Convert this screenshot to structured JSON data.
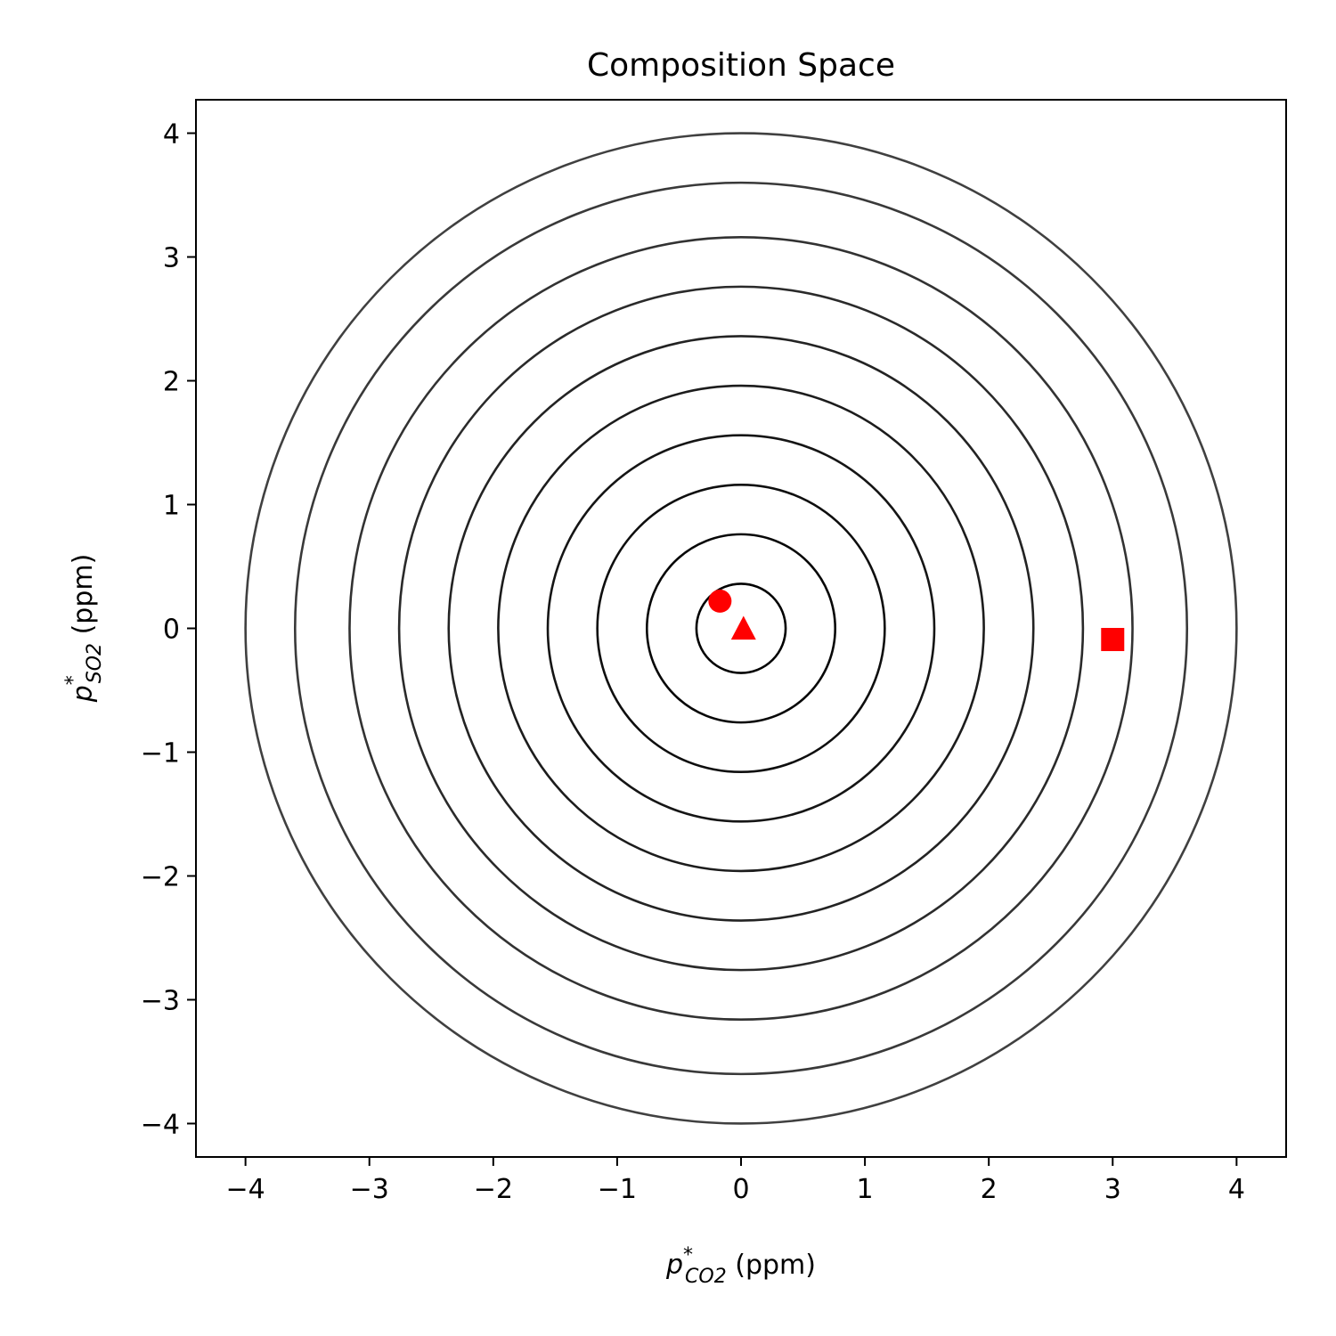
{
  "chart_data": {
    "type": "scatter",
    "title": "Composition Space",
    "xlabel": {
      "base": "p",
      "sup": "*",
      "sub": "CO2",
      "unit": " (ppm)"
    },
    "ylabel": {
      "base": "p",
      "sup": "*",
      "sub": "SO2",
      "unit": " (ppm)"
    },
    "xlim": [
      -4.4,
      4.4
    ],
    "ylim": [
      -4.27,
      4.27
    ],
    "xticks": [
      -4,
      -3,
      -2,
      -1,
      0,
      1,
      2,
      3,
      4
    ],
    "yticks": [
      -4,
      -3,
      -2,
      -1,
      0,
      1,
      2,
      3,
      4
    ],
    "xtick_labels": [
      "−4",
      "−3",
      "−2",
      "−1",
      "0",
      "1",
      "2",
      "3",
      "4"
    ],
    "ytick_labels": [
      "−4",
      "−3",
      "−2",
      "−1",
      "0",
      "1",
      "2",
      "3",
      "4"
    ],
    "grid": false,
    "contours": {
      "center": [
        0,
        0
      ],
      "radii": [
        0.36,
        0.76,
        1.16,
        1.56,
        1.96,
        2.36,
        2.76,
        3.16,
        3.6,
        4.0
      ],
      "color": "#000000"
    },
    "markers": [
      {
        "shape": "circle",
        "x": -0.17,
        "y": 0.22,
        "color": "#ff0000"
      },
      {
        "shape": "triangle",
        "x": 0.02,
        "y": 0.0,
        "color": "#ff0000"
      },
      {
        "shape": "square",
        "x": 3.0,
        "y": -0.09,
        "color": "#ff0000"
      }
    ]
  }
}
